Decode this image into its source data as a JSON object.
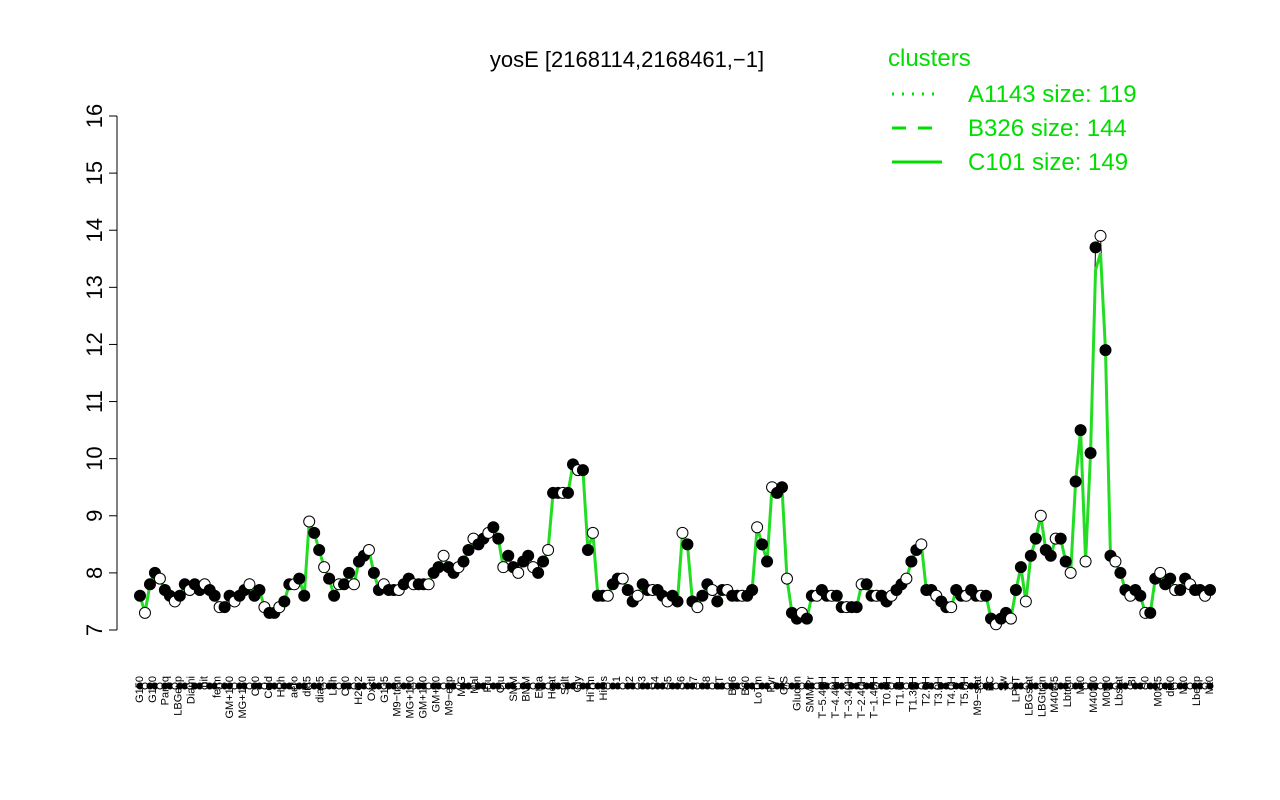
{
  "chart_data": {
    "type": "line",
    "title": "yosE [2168114,2168461,−1]",
    "ylim": [
      7,
      16
    ],
    "yticks": [
      7,
      8,
      9,
      10,
      11,
      12,
      13,
      14,
      15,
      16
    ],
    "grid": false,
    "legend": {
      "placement": "top-right",
      "title": "clusters",
      "entries": [
        {
          "label": "A1143 size: 119",
          "style": "dotted"
        },
        {
          "label": "B326 size: 144",
          "style": "dashed"
        },
        {
          "label": "C101 size: 149",
          "style": "solid"
        }
      ]
    },
    "colors": {
      "line": "#22dd22",
      "black_line": "#000000",
      "legend": "#00dd00"
    },
    "x_tick_labels": [
      "G150",
      "G180",
      "Paraq",
      "LBGexp",
      "Diami",
      "nit",
      "ferm",
      "GM+150",
      "MG+150",
      "C90",
      "Cold",
      "HPh",
      "aero",
      "dia5",
      "dia15",
      "LPh",
      "C30",
      "H2O2",
      "Oxctl",
      "G135",
      "M9−tran",
      "MG+120",
      "GM+120",
      "GM+90",
      "M9−exp",
      "M/G",
      "Mal",
      "Fru",
      "Glu",
      "SMM",
      "BMM",
      "Etha",
      "Heat",
      "Salt",
      "Gly",
      "HiTm",
      "HiOs",
      "S1",
      "S2",
      "S3",
      "S4",
      "S5",
      "S6",
      "S7",
      "S8",
      "BT",
      "B36",
      "B60",
      "LoTm",
      "Pyr",
      "G/S",
      "Glucon",
      "SMMPr",
      "T−5.40H",
      "T−4.40H",
      "T−3.40H",
      "T−2.40H",
      "T−1.40H",
      "T0.0H",
      "T1.0H",
      "T1.30H",
      "T2.0H",
      "T3.0H",
      "T4.0H",
      "T5.0H",
      "M9−stat",
      "BC",
      "Sw",
      "LPhT",
      "LBGstat",
      "LBGtran",
      "M40t45",
      "Lbtran",
      "Mt0",
      "M40t90",
      "M0t90",
      "Lbstat",
      "BI",
      "S0",
      "M0t45",
      "dia0",
      "Mt0",
      "Lbexp",
      "Mt0"
    ],
    "series": [
      {
        "style": "solid-green",
        "values": [
          7.6,
          7.3,
          7.8,
          8.0,
          7.9,
          7.7,
          7.6,
          7.5,
          7.6,
          7.8,
          7.7,
          7.8,
          7.7,
          7.8,
          7.7,
          7.6,
          7.4,
          7.4,
          7.6,
          7.5,
          7.6,
          7.7,
          7.8,
          7.6,
          7.7,
          7.4,
          7.3,
          7.3,
          7.4,
          7.5,
          7.8,
          7.8,
          7.9,
          7.6,
          8.9,
          8.7,
          8.4,
          8.1,
          7.9,
          7.6,
          7.8,
          7.8,
          8.0,
          7.8,
          8.2,
          8.3,
          8.4,
          8.0,
          7.7,
          7.8,
          7.7,
          7.7,
          7.7,
          7.8,
          7.9,
          7.8,
          7.8,
          7.8,
          7.8,
          8.0,
          8.1,
          8.3,
          8.1,
          8.0,
          8.1,
          8.2,
          8.4,
          8.6,
          8.5,
          8.6,
          8.7,
          8.8,
          8.6,
          8.1,
          8.3,
          8.1,
          8.0,
          8.2,
          8.3,
          8.1,
          8.0,
          8.2,
          8.4,
          9.4,
          9.4,
          9.4,
          9.4,
          9.9,
          9.8,
          9.8,
          8.4,
          8.7,
          7.6,
          7.6,
          7.6,
          7.8,
          7.9,
          7.9,
          7.7,
          7.5,
          7.6,
          7.8,
          7.7,
          7.7,
          7.7,
          7.6,
          7.5,
          7.6,
          7.5,
          8.7,
          8.5,
          7.5,
          7.4,
          7.6,
          7.8,
          7.7,
          7.5,
          7.7,
          7.7,
          7.6,
          7.6,
          7.6,
          7.6,
          7.7,
          8.8,
          8.5,
          8.2,
          9.5,
          9.4,
          9.5,
          7.9,
          7.3,
          7.2,
          7.3,
          7.2,
          7.6,
          7.6,
          7.7,
          7.6,
          7.6,
          7.6,
          7.4,
          7.4,
          7.4,
          7.4,
          7.8,
          7.8,
          7.6,
          7.6,
          7.6,
          7.5,
          7.6,
          7.7,
          7.8,
          7.9,
          8.2,
          8.4,
          8.5,
          7.7,
          7.7,
          7.6,
          7.5,
          7.4,
          7.4,
          7.7,
          7.6,
          7.6,
          7.7,
          7.6,
          7.6,
          7.6,
          7.2,
          7.1,
          7.2,
          7.3,
          7.2,
          7.7,
          8.1,
          7.5,
          8.3,
          8.6,
          9.0,
          8.4,
          8.3,
          8.6,
          8.6,
          8.2,
          8.0,
          9.6,
          10.5,
          8.2,
          10.1,
          13.3,
          13.6,
          11.9,
          8.3,
          8.2,
          8.0,
          7.7,
          7.6,
          7.7,
          7.6,
          7.3,
          7.3,
          7.9,
          8.0,
          7.8,
          7.9,
          7.7,
          7.7,
          7.9,
          7.8,
          7.7,
          7.7,
          7.6,
          7.7
        ]
      },
      {
        "style": "solid-black",
        "values": [
          7.6,
          7.3,
          7.8,
          8.0,
          7.9,
          7.7,
          7.6,
          7.5,
          7.6,
          7.8,
          7.7,
          7.8,
          7.7,
          7.8,
          7.7,
          7.6,
          7.4,
          7.4,
          7.6,
          7.5,
          7.6,
          7.7,
          7.8,
          7.6,
          7.7,
          7.4,
          7.3,
          7.3,
          7.4,
          7.5,
          7.8,
          7.8,
          7.9,
          7.6,
          8.9,
          8.7,
          8.4,
          8.1,
          7.9,
          7.6,
          7.8,
          7.8,
          8.0,
          7.8,
          8.2,
          8.3,
          8.4,
          8.0,
          7.7,
          7.8,
          7.7,
          7.7,
          7.7,
          7.8,
          7.9,
          7.8,
          7.8,
          7.8,
          7.8,
          8.0,
          8.1,
          8.3,
          8.1,
          8.0,
          8.1,
          8.2,
          8.4,
          8.6,
          8.5,
          8.6,
          8.7,
          8.8,
          8.6,
          8.1,
          8.3,
          8.1,
          8.0,
          8.2,
          8.3,
          8.1,
          8.0,
          8.2,
          8.4,
          9.4,
          9.4,
          9.4,
          9.4,
          9.9,
          9.8,
          9.8,
          8.4,
          8.7,
          7.6,
          7.6,
          7.6,
          7.8,
          7.9,
          7.9,
          7.7,
          7.5,
          7.6,
          7.8,
          7.7,
          7.7,
          7.7,
          7.6,
          7.5,
          7.6,
          7.5,
          8.7,
          8.5,
          7.5,
          7.4,
          7.6,
          7.8,
          7.7,
          7.5,
          7.7,
          7.7,
          7.6,
          7.6,
          7.6,
          7.6,
          7.7,
          8.8,
          8.5,
          8.2,
          9.5,
          9.4,
          9.5,
          7.9,
          7.3,
          7.2,
          7.3,
          7.2,
          7.6,
          7.6,
          7.7,
          7.6,
          7.6,
          7.6,
          7.4,
          7.4,
          7.4,
          7.4,
          7.8,
          7.8,
          7.6,
          7.6,
          7.6,
          7.5,
          7.6,
          7.7,
          7.8,
          7.9,
          8.2,
          8.4,
          8.5,
          7.7,
          7.7,
          7.6,
          7.5,
          7.4,
          7.4,
          7.7,
          7.6,
          7.6,
          7.7,
          7.6,
          7.6,
          7.6,
          7.2,
          7.1,
          7.2,
          7.3,
          7.2,
          7.7,
          8.1,
          7.5,
          8.3,
          8.6,
          9.0,
          8.4,
          8.3,
          8.6,
          8.6,
          8.2,
          8.0,
          9.6,
          10.5,
          8.2,
          10.1,
          13.7,
          13.9,
          11.9,
          8.3,
          8.2,
          8.0,
          7.7,
          7.6,
          7.7,
          7.6,
          7.3,
          7.3,
          7.9,
          8.0,
          7.8,
          7.9,
          7.7,
          7.7,
          7.9,
          7.8,
          7.7,
          7.7,
          7.6,
          7.7
        ]
      }
    ]
  }
}
